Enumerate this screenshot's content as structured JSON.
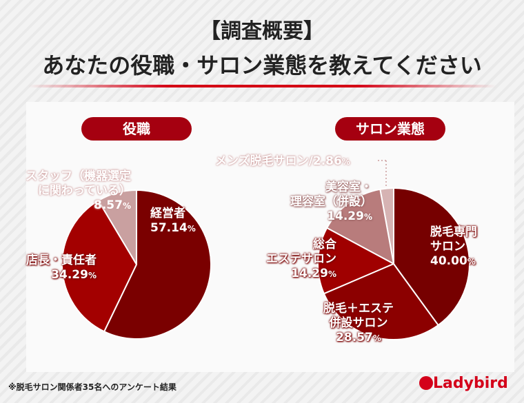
{
  "title_line1": "【調査概要】",
  "title_line2": "あなたの役職・サロン業態を教えてください",
  "footnote": "※脱毛サロン関係者35名へのアンケート結果",
  "logo": "Ladybird",
  "chart_data": [
    {
      "type": "pie",
      "title": "役職",
      "start": "top",
      "direction": "clockwise",
      "slices": [
        {
          "label": "経営者",
          "value": 57.14,
          "color": "#7a0000"
        },
        {
          "label": "店長・責任者",
          "value": 34.29,
          "color": "#a30000"
        },
        {
          "label": "スタッフ（機器選定に関わっている）",
          "value": 8.57,
          "color": "#c9a0a0"
        }
      ]
    },
    {
      "type": "pie",
      "title": "サロン業態",
      "start": "top",
      "direction": "clockwise",
      "slices": [
        {
          "label": "脱毛専門サロン",
          "value": 40.0,
          "color": "#760000"
        },
        {
          "label": "脱毛＋エステ併設サロン",
          "value": 28.57,
          "color": "#8c0000"
        },
        {
          "label": "総合エステサロン",
          "value": 14.29,
          "color": "#a00000"
        },
        {
          "label": "美容室・理容室（併設）",
          "value": 14.29,
          "color": "#b87c7c"
        },
        {
          "label": "メンズ脱毛サロン",
          "value": 2.86,
          "color": "#d6b3b3"
        }
      ]
    }
  ],
  "labels": {
    "l0a": "経営者",
    "l0b": "57.14",
    "l1a": "店長・責任者",
    "l1b": "34.29",
    "l2a": "スタッフ（機器選定",
    "l2b": "に関わっている）",
    "l2c": "8.57",
    "r0a": "脱毛専門",
    "r0b": "サロン",
    "r0c": "40.00",
    "r1a": "脱毛＋エステ",
    "r1b": "併設サロン",
    "r1c": "28.57",
    "r2a": "総合",
    "r2b": "エステサロン",
    "r2c": "14.29",
    "r3a": "美容室・",
    "r3b": "理容室（併設）",
    "r3c": "14.29",
    "r4": "メンズ脱毛サロン/2.86",
    "pct": "%"
  }
}
